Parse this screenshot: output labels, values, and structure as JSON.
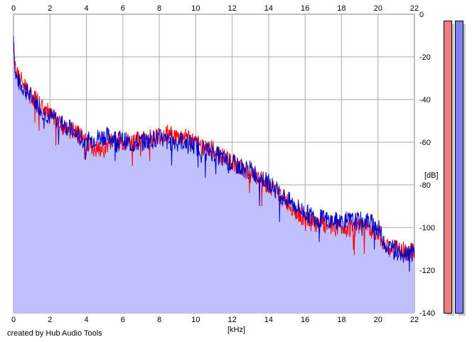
{
  "credit": "created by Hub Audio Tools",
  "x_unit_label": "[kHz]",
  "y_unit_label": "[dB]",
  "colors": {
    "fill": "#c0c0fe",
    "grid": "#aaaaaa",
    "left_channel": "#ff0000",
    "right_channel": "#0000c8",
    "meter_left": "#f08080",
    "meter_right": "#8080f0"
  },
  "meters": {
    "left_level": 0.98,
    "right_level": 0.98
  },
  "chart_data": {
    "type": "line",
    "xlabel": "[kHz]",
    "ylabel": "[dB]",
    "xlim": [
      0,
      22
    ],
    "ylim": [
      -140,
      0
    ],
    "x_ticks": [
      "0",
      "2",
      "4",
      "6",
      "8",
      "10",
      "12",
      "14",
      "16",
      "18",
      "20",
      "22"
    ],
    "y_ticks": [
      "0",
      "-20",
      "-40",
      "-60",
      "-80",
      "-100",
      "-120",
      "-140"
    ],
    "grid": true,
    "series": [
      {
        "color": "#ff0000",
        "x": [
          0,
          0.1,
          0.3,
          0.6,
          1,
          1.5,
          2,
          2.5,
          3,
          3.5,
          4,
          4.5,
          5,
          5.5,
          6,
          6.5,
          7,
          7.5,
          8,
          8.5,
          9,
          9.5,
          10,
          10.5,
          11,
          11.5,
          12,
          12.5,
          13,
          13.5,
          14,
          14.5,
          15,
          15.5,
          16,
          16.5,
          17,
          17.5,
          18,
          18.5,
          19,
          19.5,
          20,
          20.2,
          20.5,
          21,
          21.5,
          22
        ],
        "y": [
          -13,
          -25,
          -30,
          -33,
          -38,
          -43,
          -47,
          -52,
          -54,
          -56,
          -60,
          -64,
          -63,
          -58,
          -60,
          -60,
          -59,
          -58,
          -57,
          -56,
          -58,
          -57,
          -61,
          -62,
          -64,
          -67,
          -69,
          -72,
          -74,
          -77,
          -80,
          -84,
          -88,
          -92,
          -96,
          -98,
          -99,
          -99,
          -100,
          -100,
          -100,
          -100,
          -102,
          -105,
          -110,
          -110,
          -111,
          -112
        ]
      },
      {
        "color": "#0000c8",
        "x": [
          0,
          0.1,
          0.3,
          0.6,
          1,
          1.5,
          2,
          2.5,
          3,
          3.5,
          4,
          4.5,
          5,
          5.5,
          6,
          6.5,
          7,
          7.5,
          8,
          8.5,
          9,
          9.5,
          10,
          10.5,
          11,
          11.5,
          12,
          12.5,
          13,
          13.5,
          14,
          14.5,
          15,
          15.5,
          16,
          16.5,
          17,
          17.5,
          18,
          18.5,
          19,
          19.5,
          20,
          20.2,
          20.5,
          21,
          21.5,
          22
        ],
        "y": [
          -10,
          -28,
          -32,
          -35,
          -39,
          -44,
          -48,
          -50,
          -53,
          -57,
          -60,
          -58,
          -57,
          -58,
          -59,
          -61,
          -60,
          -59,
          -58,
          -60,
          -59,
          -60,
          -62,
          -63,
          -65,
          -68,
          -70,
          -72,
          -73,
          -76,
          -79,
          -83,
          -87,
          -90,
          -93,
          -95,
          -96,
          -97,
          -97,
          -97,
          -97,
          -97,
          -100,
          -104,
          -109,
          -110,
          -111,
          -112
        ]
      }
    ]
  }
}
